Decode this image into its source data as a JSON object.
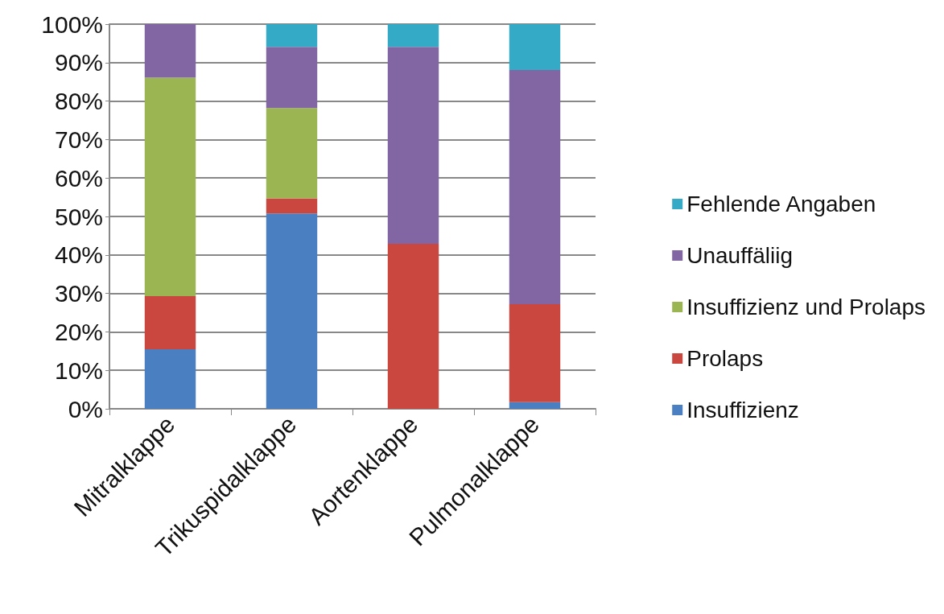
{
  "chart_data": {
    "type": "bar",
    "stacked": true,
    "categories": [
      "Mitralklappe",
      "Trikuspidalklappe",
      "Aortenklappe",
      "Pulmonalklappe"
    ],
    "series": [
      {
        "name": "Insuffizienz",
        "color": "#4a7fc1",
        "values": [
          15.5,
          50.8,
          0,
          1.7
        ]
      },
      {
        "name": "Prolaps",
        "color": "#c9473f",
        "values": [
          13.8,
          3.9,
          42.9,
          25.5
        ]
      },
      {
        "name": "Insuffizienz und Prolaps",
        "color": "#9bb552",
        "values": [
          56.8,
          23.5,
          0,
          0
        ]
      },
      {
        "name": "Unauffäliig",
        "color": "#8266a3",
        "values": [
          13.9,
          15.9,
          51.2,
          60.9
        ]
      },
      {
        "name": "Fehlende Angaben",
        "color": "#35aac6",
        "values": [
          0,
          5.9,
          5.9,
          11.9
        ]
      }
    ],
    "ylim": [
      0,
      100
    ],
    "yticks": [
      {
        "value": 0,
        "label": "0%"
      },
      {
        "value": 10,
        "label": "10%"
      },
      {
        "value": 20,
        "label": "20%"
      },
      {
        "value": 30,
        "label": "30%"
      },
      {
        "value": 40,
        "label": "40%"
      },
      {
        "value": 50,
        "label": "50%"
      },
      {
        "value": 60,
        "label": "60%"
      },
      {
        "value": 70,
        "label": "70%"
      },
      {
        "value": 80,
        "label": "80%"
      },
      {
        "value": 90,
        "label": "90%"
      },
      {
        "value": 100,
        "label": "100%"
      }
    ],
    "grid": "y",
    "legend": "right"
  }
}
